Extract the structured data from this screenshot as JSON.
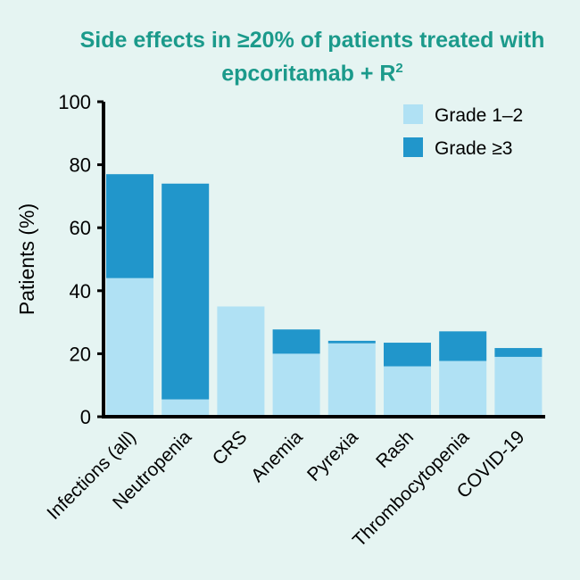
{
  "chart_data": {
    "type": "bar",
    "stacked": true,
    "title": "Side effects in ≥20% of patients treated with epcoritamab + R",
    "title_superscript": "2",
    "ylabel": "Patients (%)",
    "xlabel": "",
    "ylim": [
      0,
      100
    ],
    "yticks": [
      0,
      20,
      40,
      60,
      80,
      100
    ],
    "grid": false,
    "legend_position": "top-right",
    "categories": [
      "Infections (all)",
      "Neutropenia",
      "CRS",
      "Anemia",
      "Pyrexia",
      "Rash",
      "Thrombocytopenia",
      "COVID-19"
    ],
    "series": [
      {
        "name": "Grade 1–2",
        "color": "#b0e1f4",
        "values": [
          44,
          5.5,
          35,
          20,
          23.3,
          16,
          17.7,
          19
        ]
      },
      {
        "name": "Grade ≥3",
        "color": "#2196cb",
        "values": [
          33,
          68.5,
          0,
          7.7,
          0.8,
          7.5,
          9.4,
          2.8
        ]
      }
    ]
  },
  "colors": {
    "background": "#e5f4f2",
    "title": "#1b9a8b"
  }
}
